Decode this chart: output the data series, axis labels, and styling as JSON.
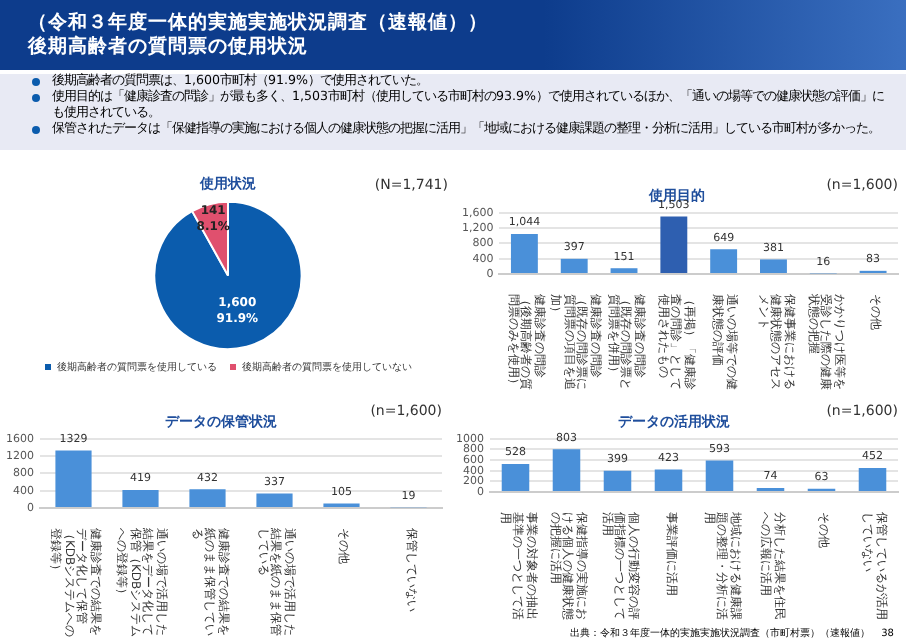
{
  "chart_data": [
    {
      "type": "other",
      "title": "（令和３年度一体的実施実施状況調査（速報値））",
      "subtitle": "後期高齢者の質問票の使用状況",
      "annotations": [
        "後期高齢者の質問票は、1,600市町村（91.9%）で使用されていた。",
        "使用目的は「健康診査の問診」が最も多く、1,503市町村（使用している市町村の93.9%）で使用されているほか、「通いの場等での健康状態の評価」にも使用されている。",
        "保管されたデータは「保健指導の実施における個人の健康状態の把握に活用」「地域における健康課題の整理・分析に活用」している市町村が多かった。"
      ]
    },
    {
      "type": "pie",
      "title": "使用状況",
      "subtitle": "(N=1,741)",
      "categories": [
        "後期高齢者の質問票を使用している",
        "後期高齢者の質問票を使用していない"
      ],
      "values": [
        1600,
        141
      ],
      "colors": [
        "#0b5cad",
        "#e0506e"
      ],
      "value_labels": [
        "1,600\n91.9%",
        "141\n8.1%"
      ],
      "legend": "bottom"
    },
    {
      "type": "bar",
      "title": "使用目的",
      "subtitle": "(n=1,600)",
      "categories": [
        "健康診査の問診（後期高齢者の質問票のみを使用）",
        "健康診査の問診（既存の問診票に質問票の項目を追加）",
        "健康診査の問診（既存の問診票と質問票を併用）",
        "（再掲）「健康診査の問診」として使用されたもの",
        "通いの場等での健康状態の評価",
        "保健事業における健康状態のアセスメント",
        "かかりつけ医等を受診した際の健康状態の把握",
        "その他"
      ],
      "values": [
        1044,
        397,
        151,
        1503,
        649,
        381,
        16,
        83
      ],
      "colors": [
        "#4a90d9",
        "#4a90d9",
        "#4a90d9",
        "#2e5fb0",
        "#4a90d9",
        "#4a90d9",
        "#4a90d9",
        "#4a90d9"
      ],
      "value_labels": [
        "1,044",
        "397",
        "151",
        "1,503",
        "649",
        "381",
        "16",
        "83"
      ],
      "ylim": [
        0,
        1600
      ],
      "yticks": [
        0,
        {
          "value": 400,
          "label": "400"
        },
        {
          "value": 800,
          "label": "800"
        },
        {
          "value": 1200,
          "label": "1,200"
        },
        {
          "value": 1600,
          "label": "1,600"
        }
      ],
      "grid": "y"
    },
    {
      "type": "bar",
      "title": "データの保管状況",
      "subtitle": "(n=1,600)",
      "categories": [
        "健康診査での結果をデータ化して保管（KDBシステムへの登録等）",
        "通いの場で活用した結果をデータ化して保管（KDBシステムへの登録等）",
        "健康診査での結果を紙のまま保管している",
        "通いの場で活用した結果を紙のまま保管している",
        "その他",
        "保管していない"
      ],
      "values": [
        1329,
        419,
        432,
        337,
        105,
        19
      ],
      "color": "#4a90d9",
      "data_labels": true,
      "ylim": [
        0,
        1600
      ],
      "yticks": [
        0,
        400,
        800,
        1200,
        1600
      ],
      "grid": "y"
    },
    {
      "type": "bar",
      "title": "データの活用状況",
      "subtitle": "(n=1,600)",
      "categories": [
        "事業の対象者の抽出基準の一つとして活用",
        "保健指導の実施における個人の健康状態の把握に活用",
        "個人の行動変容の評価指標の一つとして活用",
        "事業評価に活用",
        "地域における健康課題の整理・分析に活用",
        "分析した結果を住民への広報に活用",
        "その他",
        "保管しているが活用していない"
      ],
      "values": [
        528,
        803,
        399,
        423,
        593,
        74,
        63,
        452
      ],
      "color": "#4a90d9",
      "data_labels": true,
      "ylim": [
        0,
        1000
      ],
      "yticks": [
        0,
        200,
        400,
        600,
        800,
        1000
      ],
      "grid": "y",
      "annotations": [
        "出典：令和３年度一体的実施実施状況調査（市町村票）（速報値）",
        "38"
      ]
    }
  ]
}
